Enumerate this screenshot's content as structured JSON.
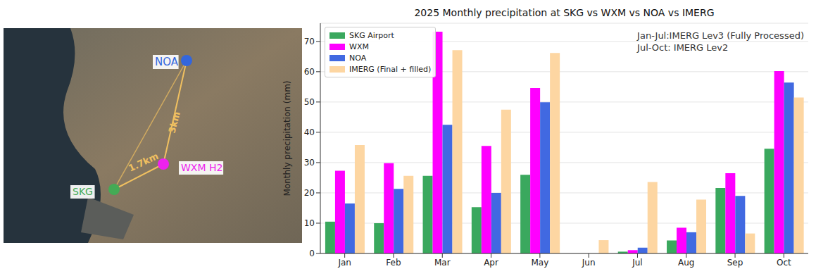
{
  "map": {
    "stations": [
      {
        "name": "NOA",
        "color": "#3366dd"
      },
      {
        "name": "WXM H2",
        "color": "#ee22ee"
      },
      {
        "name": "SKG",
        "color": "#44aa55"
      }
    ],
    "distances": [
      "1.7km",
      "3km"
    ]
  },
  "chart_data": {
    "type": "bar",
    "title": "2025 Monthly precipitation at SKG vs WXM vs NOA vs IMERG",
    "y_label": "Monthly precipitation (mm)",
    "annotations": [
      "Jan-Jul:IMERG Lev3 (Fully Processed)",
      "Jul-Oct: IMERG Lev2"
    ],
    "categories": [
      "Jan",
      "Feb",
      "Mar",
      "Apr",
      "May",
      "Jun",
      "Jul",
      "Aug",
      "Sep",
      "Oct"
    ],
    "series": [
      {
        "name": "SKG Airport",
        "color": "#3aa85e",
        "values": [
          10.5,
          10.0,
          25.6,
          15.3,
          26.0,
          0,
          0.6,
          4.3,
          21.6,
          34.6
        ]
      },
      {
        "name": "WXM",
        "color": "#ff00ff",
        "values": [
          27.3,
          29.8,
          73.2,
          35.5,
          54.6,
          0,
          1.1,
          8.5,
          26.5,
          60.2
        ]
      },
      {
        "name": "NOA",
        "color": "#4169e1",
        "values": [
          16.5,
          21.3,
          42.5,
          20.0,
          49.9,
          0,
          1.9,
          7.0,
          19.0,
          56.4
        ]
      },
      {
        "name": "IMERG (Final + filled)",
        "color": "#fdd6a2",
        "values": [
          35.8,
          25.6,
          67.1,
          47.5,
          66.2,
          4.4,
          23.6,
          17.8,
          6.6,
          51.5
        ]
      }
    ],
    "ylim": [
      0,
      76
    ],
    "yticks": [
      0,
      10,
      20,
      30,
      40,
      50,
      60,
      70
    ],
    "grid": true,
    "legend": "upper left"
  }
}
